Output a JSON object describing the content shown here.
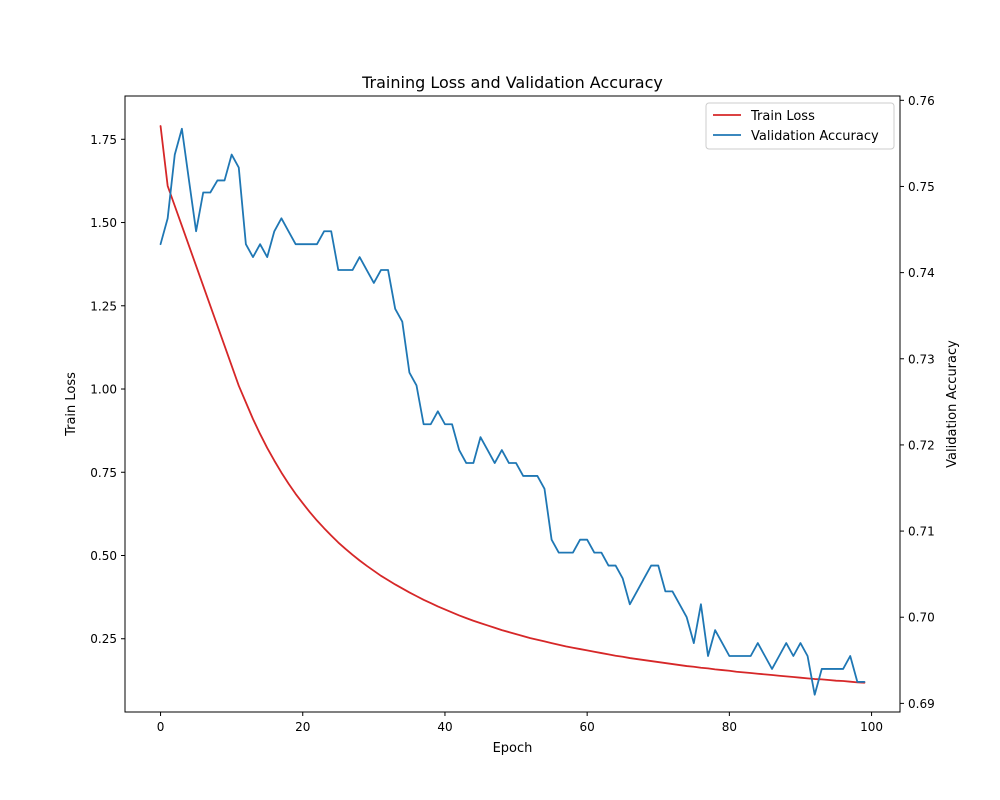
{
  "chart_data": {
    "type": "line",
    "title": "Training Loss and Validation Accuracy",
    "xlabel": "Epoch",
    "ylabel_left": "Train Loss",
    "ylabel_right": "Validation Accuracy",
    "xlim": [
      -5,
      104
    ],
    "ylim_left": [
      0.03,
      1.88
    ],
    "ylim_right": [
      0.689,
      0.7605
    ],
    "x_ticks": [
      0,
      20,
      40,
      60,
      80,
      100
    ],
    "y_ticks_left": [
      0.25,
      0.5,
      0.75,
      1.0,
      1.25,
      1.5,
      1.75
    ],
    "y_ticks_right": [
      0.69,
      0.7,
      0.71,
      0.72,
      0.73,
      0.74,
      0.75,
      0.76
    ],
    "grid": false,
    "legend_position": "top-right",
    "series": [
      {
        "name": "Train Loss",
        "axis": "left",
        "color": "#d62728",
        "x_start": 0,
        "values": [
          1.79,
          1.61,
          1.55,
          1.49,
          1.43,
          1.37,
          1.31,
          1.25,
          1.19,
          1.13,
          1.07,
          1.01,
          0.96,
          0.91,
          0.865,
          0.823,
          0.785,
          0.749,
          0.716,
          0.685,
          0.657,
          0.63,
          0.605,
          0.582,
          0.56,
          0.539,
          0.52,
          0.502,
          0.485,
          0.469,
          0.454,
          0.439,
          0.426,
          0.413,
          0.401,
          0.389,
          0.378,
          0.367,
          0.357,
          0.347,
          0.338,
          0.329,
          0.32,
          0.312,
          0.304,
          0.297,
          0.29,
          0.283,
          0.276,
          0.27,
          0.264,
          0.258,
          0.252,
          0.247,
          0.242,
          0.237,
          0.232,
          0.227,
          0.223,
          0.219,
          0.215,
          0.211,
          0.207,
          0.203,
          0.199,
          0.196,
          0.192,
          0.189,
          0.186,
          0.183,
          0.18,
          0.177,
          0.174,
          0.171,
          0.168,
          0.166,
          0.163,
          0.161,
          0.158,
          0.156,
          0.154,
          0.151,
          0.149,
          0.147,
          0.145,
          0.143,
          0.141,
          0.139,
          0.137,
          0.135,
          0.133,
          0.131,
          0.129,
          0.128,
          0.126,
          0.124,
          0.123,
          0.121,
          0.119,
          0.118
        ]
      },
      {
        "name": "Validation Accuracy",
        "axis": "right",
        "color": "#1f77b4",
        "x_start": 0,
        "values": [
          0.7433,
          0.7463,
          0.7537,
          0.7567,
          0.7507,
          0.7448,
          0.7493,
          0.7493,
          0.7507,
          0.7507,
          0.7537,
          0.7522,
          0.7433,
          0.7418,
          0.7433,
          0.7418,
          0.7448,
          0.7463,
          0.7448,
          0.7433,
          0.7433,
          0.7433,
          0.7433,
          0.7448,
          0.7448,
          0.7403,
          0.7403,
          0.7403,
          0.7418,
          0.7403,
          0.7388,
          0.7403,
          0.7403,
          0.7358,
          0.7343,
          0.7284,
          0.7269,
          0.7224,
          0.7224,
          0.7239,
          0.7224,
          0.7224,
          0.7194,
          0.7179,
          0.7179,
          0.7209,
          0.7194,
          0.7179,
          0.7194,
          0.7179,
          0.7179,
          0.7164,
          0.7164,
          0.7164,
          0.7149,
          0.709,
          0.7075,
          0.7075,
          0.7075,
          0.709,
          0.709,
          0.7075,
          0.7075,
          0.706,
          0.706,
          0.7045,
          0.7015,
          0.703,
          0.7045,
          0.706,
          0.706,
          0.703,
          0.703,
          0.7015,
          0.7,
          0.697,
          0.7015,
          0.6955,
          0.6985,
          0.697,
          0.6955,
          0.6955,
          0.6955,
          0.6955,
          0.697,
          0.6955,
          0.694,
          0.6955,
          0.697,
          0.6955,
          0.697,
          0.6955,
          0.691,
          0.694,
          0.694,
          0.694,
          0.694,
          0.6955,
          0.6925,
          0.6925
        ]
      }
    ]
  }
}
